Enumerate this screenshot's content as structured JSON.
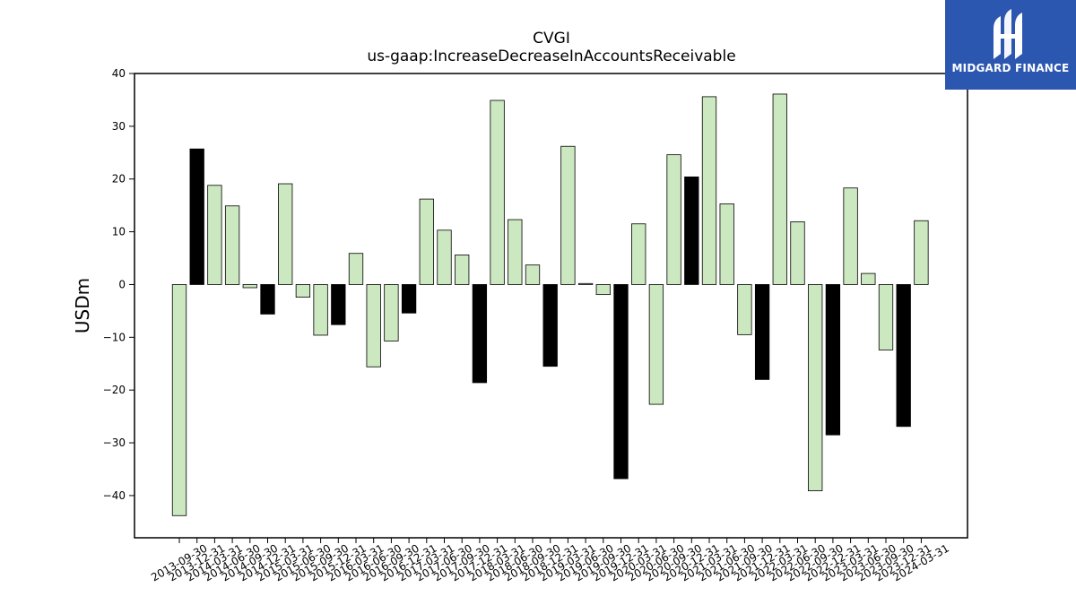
{
  "brand": {
    "name": "MIDGARD FINANCE",
    "bg_color": "#2b57b0"
  },
  "chart_data": {
    "type": "bar",
    "title": "CVGI",
    "subtitle": "us-gaap:IncreaseDecreaseInAccountsReceivable",
    "xlabel": "",
    "ylabel": "USDm",
    "ylim": [
      -48,
      40
    ],
    "yticks": [
      -40,
      -30,
      -20,
      -10,
      0,
      10,
      20,
      30,
      40
    ],
    "grid": false,
    "colors": {
      "Q1-Q3": "#cce8c0",
      "Q4": "#000000"
    },
    "categories": [
      "2013-09-30",
      "2013-12-31",
      "2014-03-31",
      "2014-06-30",
      "2014-09-30",
      "2014-12-31",
      "2015-03-31",
      "2015-06-30",
      "2015-09-30",
      "2015-12-31",
      "2016-03-31",
      "2016-06-30",
      "2016-09-30",
      "2016-12-31",
      "2017-03-31",
      "2017-06-30",
      "2017-09-30",
      "2017-12-31",
      "2018-03-31",
      "2018-06-30",
      "2018-09-30",
      "2018-12-31",
      "2019-03-31",
      "2019-06-30",
      "2019-09-30",
      "2019-12-31",
      "2020-03-31",
      "2020-06-30",
      "2020-09-30",
      "2020-12-31",
      "2021-03-31",
      "2021-06-30",
      "2021-09-30",
      "2021-12-31",
      "2022-03-31",
      "2022-06-30",
      "2022-09-30",
      "2022-12-31",
      "2023-03-31",
      "2023-06-30",
      "2023-09-30",
      "2023-12-31",
      "2024-03-31"
    ],
    "values": [
      -43.8,
      25.7,
      18.8,
      14.9,
      -0.6,
      -5.6,
      19.1,
      -2.4,
      -9.6,
      -7.6,
      5.9,
      -15.6,
      -10.7,
      -5.4,
      16.2,
      10.3,
      5.6,
      -18.6,
      34.9,
      12.3,
      3.7,
      -15.5,
      26.2,
      0.2,
      -1.9,
      -36.8,
      11.5,
      -22.7,
      24.6,
      20.4,
      35.6,
      15.3,
      -9.5,
      -18.0,
      36.1,
      11.9,
      -39.1,
      -28.5,
      18.3,
      2.1,
      -12.4,
      -26.9,
      12.1
    ]
  }
}
